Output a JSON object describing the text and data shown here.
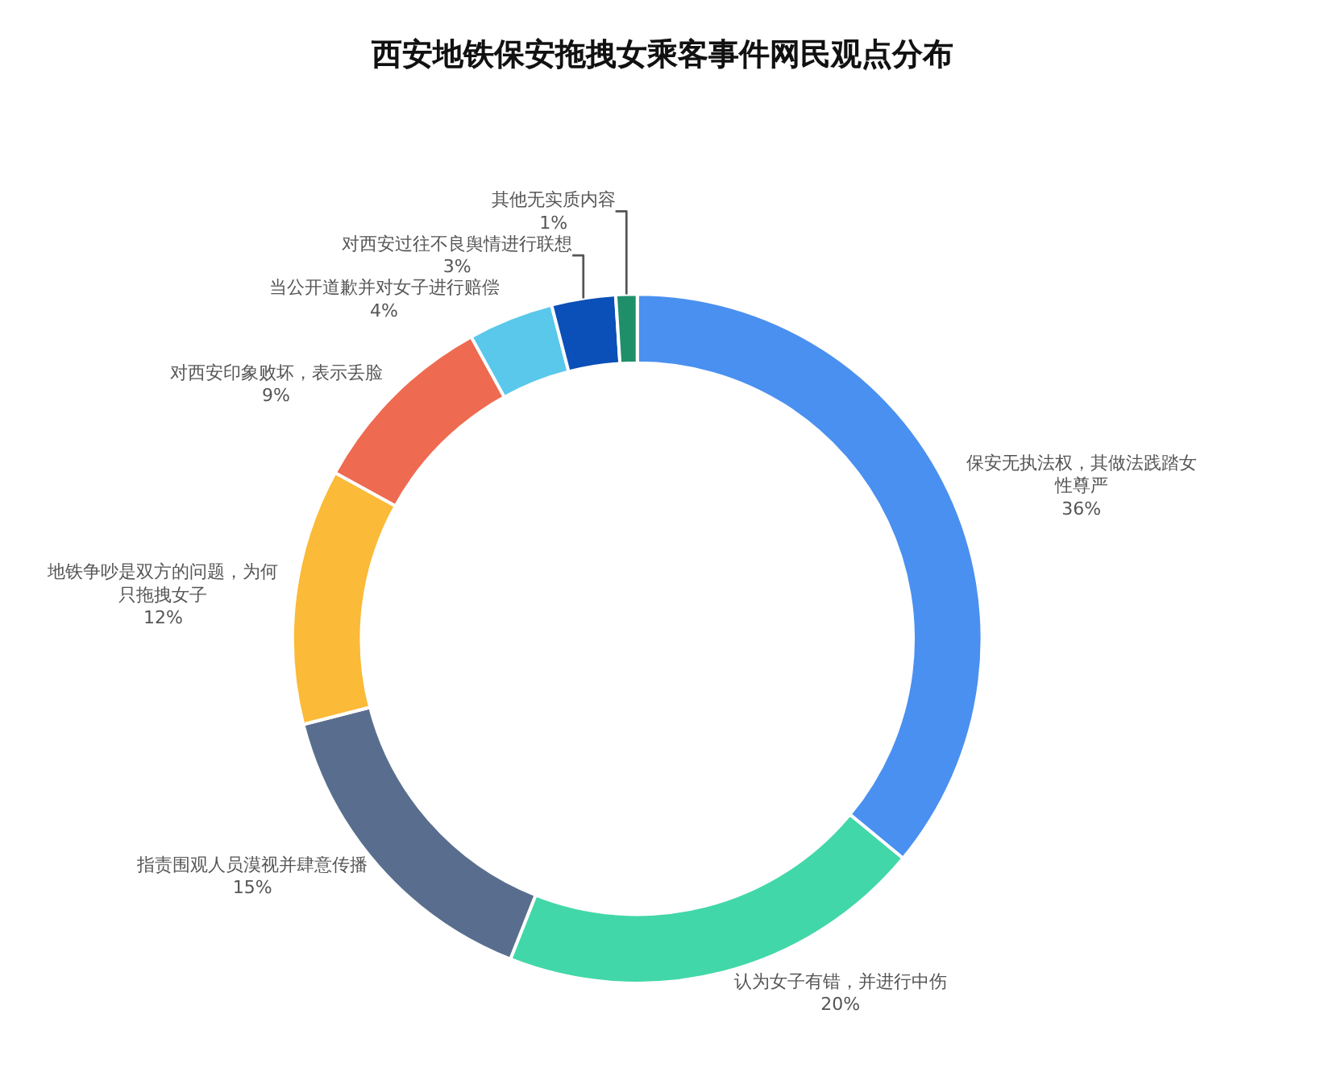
{
  "chart_data": {
    "type": "donut",
    "title": "西安地铁保安拖拽女乘客事件网民观点分布",
    "categories": [
      "保安无执法权，其做法践踏女性尊严",
      "认为女子有错，并进行中伤",
      "指责围观人员漠视并肆意传播",
      "地铁争吵是双方的问题，为何只拖拽女子",
      "对西安印象败坏，表示丢脸",
      "当公开道歉并对女子进行赔偿",
      "对西安过往不良舆情进行联想",
      "其他无实质内容"
    ],
    "values": [
      36,
      20,
      15,
      12,
      9,
      4,
      3,
      1
    ],
    "value_labels": [
      "36%",
      "20%",
      "15%",
      "12%",
      "9%",
      "4%",
      "3%",
      "1%"
    ],
    "colors": [
      "#4a90f0",
      "#42d7a8",
      "#596e8e",
      "#fbba37",
      "#ee6a50",
      "#5ac8ea",
      "#0b4fb8",
      "#1f8f6a"
    ],
    "legend": false
  }
}
